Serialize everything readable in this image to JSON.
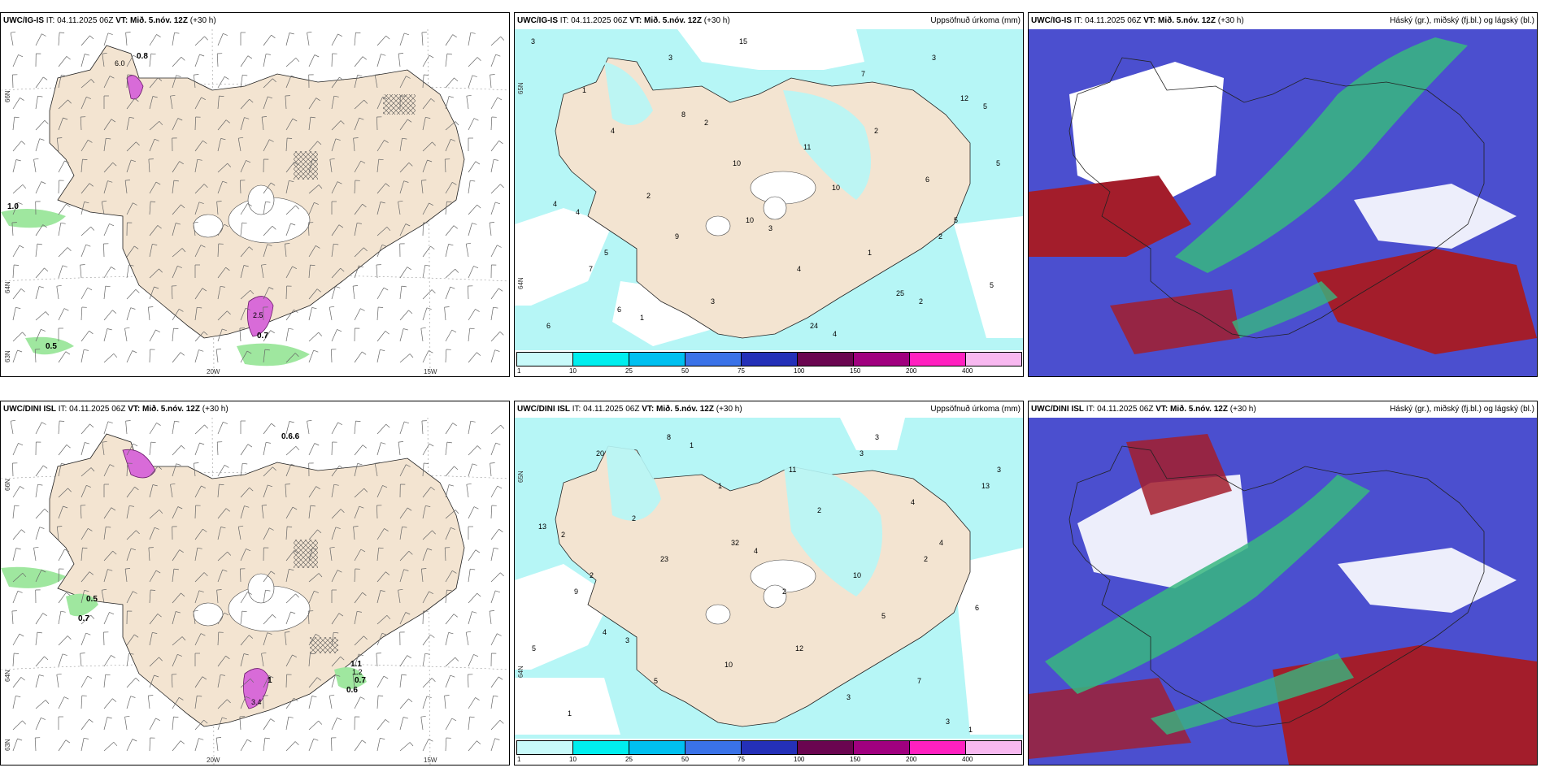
{
  "colors": {
    "land": "#f3e4d1",
    "sea": "#ffffff",
    "precip_light": "#b6f6f6",
    "green_precip": "#9fe79f",
    "magenta_precip": "#d86bd8",
    "cloud_high": "#37b77f",
    "cloud_mid": "#a31d2b",
    "cloud_low": "#4b4fcf",
    "cloud_low_light": "#8c8fe6"
  },
  "panels": {
    "p1": {
      "model": "UWC/IG-IS",
      "it_label": "IT:",
      "it_value": "04.11.2025 06Z",
      "vt_label": "VT:",
      "vt_value": "Mið. 5.nóv. 12Z",
      "lead": "(+30 h)",
      "right_title": "",
      "lat_labels": [
        "66N",
        "64N",
        "63N"
      ],
      "lon_labels": [
        "20W",
        "15W"
      ],
      "values": [
        "0.8",
        "1.0",
        "0.5",
        "0.7",
        "2.5",
        "6.0"
      ]
    },
    "p2": {
      "model": "UWC/IG-IS",
      "it_label": "IT:",
      "it_value": "04.11.2025 06Z",
      "vt_label": "VT:",
      "vt_value": "Mið. 5.nóv. 12Z",
      "lead": "(+30 h)",
      "right_title": "Uppsöfnuð úrkoma (mm)",
      "lat_labels": [
        "65N",
        "64N"
      ],
      "values": [
        "3",
        "2",
        "2",
        "24",
        "10",
        "8",
        "6",
        "4",
        "12",
        "25",
        "10",
        "7",
        "5",
        "3",
        "1",
        "11",
        "15",
        "9",
        "4",
        "6",
        "5",
        "3",
        "2",
        "1",
        "5",
        "6",
        "7",
        "4",
        "10",
        "3",
        "5",
        "4",
        "3",
        "2",
        "1",
        "4",
        "5",
        "2"
      ]
    },
    "p3": {
      "model": "UWC/IG-IS",
      "it_label": "IT:",
      "it_value": "04.11.2025 06Z",
      "vt_label": "VT:",
      "vt_value": "Mið. 5.nóv. 12Z",
      "lead": "(+30 h)",
      "right_title": "Háský (gr.), miðský (fj.bl.) og lágský (bl.)"
    },
    "p4": {
      "model": "UWC/DINI ISL",
      "it_label": "IT:",
      "it_value": "04.11.2025 06Z",
      "vt_label": "VT:",
      "vt_value": "Mið. 5.nóv. 12Z",
      "lead": "(+30 h)",
      "right_title": "",
      "lat_labels": [
        "66N",
        "64N",
        "63N"
      ],
      "lon_labels": [
        "20W",
        "15W"
      ],
      "values": [
        "0.6.6",
        "0.5",
        "0.7",
        "1.1",
        "0.7",
        "0.6",
        "1",
        "3.4",
        "1.2"
      ]
    },
    "p5": {
      "model": "UWC/DINI ISL",
      "it_label": "IT:",
      "it_value": "04.11.2025 06Z",
      "vt_label": "VT:",
      "vt_value": "Mið. 5.nóv. 12Z",
      "lead": "(+30 h)",
      "right_title": "Uppsöfnuð úrkoma (mm)",
      "lat_labels": [
        "65N",
        "64N"
      ],
      "values": [
        "2",
        "3",
        "12",
        "32",
        "8",
        "4",
        "13",
        "3",
        "5",
        "2",
        "9",
        "13",
        "7",
        "10",
        "11",
        "10",
        "23",
        "20",
        "5",
        "4",
        "3",
        "2",
        "1",
        "6",
        "4",
        "3",
        "2",
        "1",
        "5",
        "2",
        "3",
        "4",
        "1",
        "3",
        "2",
        "1"
      ]
    },
    "p6": {
      "model": "UWC/DINI ISL",
      "it_label": "IT:",
      "it_value": "04.11.2025 06Z",
      "vt_label": "VT:",
      "vt_value": "Mið. 5.nóv. 12Z",
      "lead": "(+30 h)",
      "right_title": "Háský (gr.), miðský (fj.bl.) og lágský (bl.)"
    }
  },
  "colorbar": {
    "ticks": [
      "1",
      "10",
      "25",
      "50",
      "75",
      "100",
      "150",
      "200",
      "400"
    ],
    "colors": [
      "#c8fafa",
      "#00eeee",
      "#00c0f0",
      "#3a72e8",
      "#2430b8",
      "#6a0550",
      "#a0007f",
      "#ff20c0",
      "#f8b8f0"
    ]
  }
}
